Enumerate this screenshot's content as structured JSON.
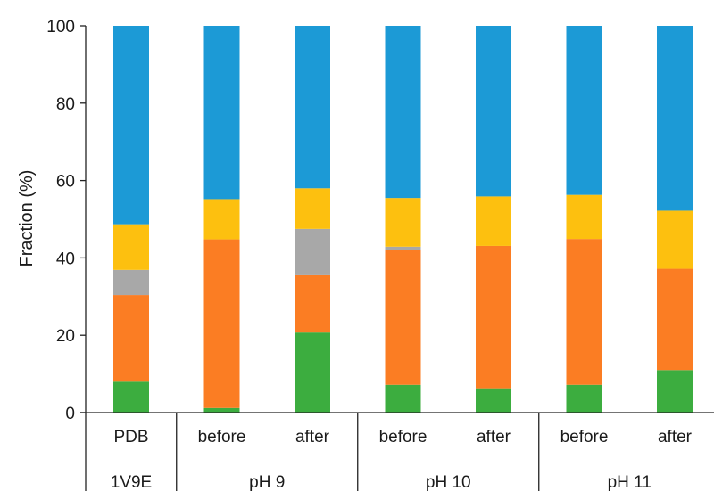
{
  "chart_data": {
    "type": "bar",
    "stacked": true,
    "title": "",
    "xlabel": "",
    "ylabel": "Fraction (%)",
    "ylim": [
      0,
      100
    ],
    "yticks": [
      0,
      20,
      40,
      60,
      80,
      100
    ],
    "grid": false,
    "legend": "none",
    "categories": [
      "PDB",
      "before",
      "after",
      "before",
      "after",
      "before",
      "after"
    ],
    "groups": [
      {
        "label": "1V9E",
        "span": 1
      },
      {
        "label": "pH 9",
        "span": 2
      },
      {
        "label": "pH 10",
        "span": 2
      },
      {
        "label": "pH 11",
        "span": 2
      }
    ],
    "series": [
      {
        "color": "#3cad3f",
        "values": [
          8.0,
          1.2,
          20.7,
          7.2,
          6.3,
          7.2,
          11.0
        ]
      },
      {
        "color": "#fb7d23",
        "values": [
          22.4,
          43.6,
          14.8,
          34.8,
          36.8,
          37.7,
          26.2
        ]
      },
      {
        "color": "#a8a8a8",
        "values": [
          6.5,
          0,
          12.0,
          0.9,
          0,
          0,
          0
        ]
      },
      {
        "color": "#fdc00f",
        "values": [
          11.8,
          10.4,
          10.5,
          12.6,
          12.8,
          11.4,
          15.0
        ]
      },
      {
        "color": "#1c9ad6",
        "values": [
          51.3,
          44.8,
          42.0,
          44.5,
          44.1,
          43.7,
          47.8
        ]
      }
    ]
  }
}
